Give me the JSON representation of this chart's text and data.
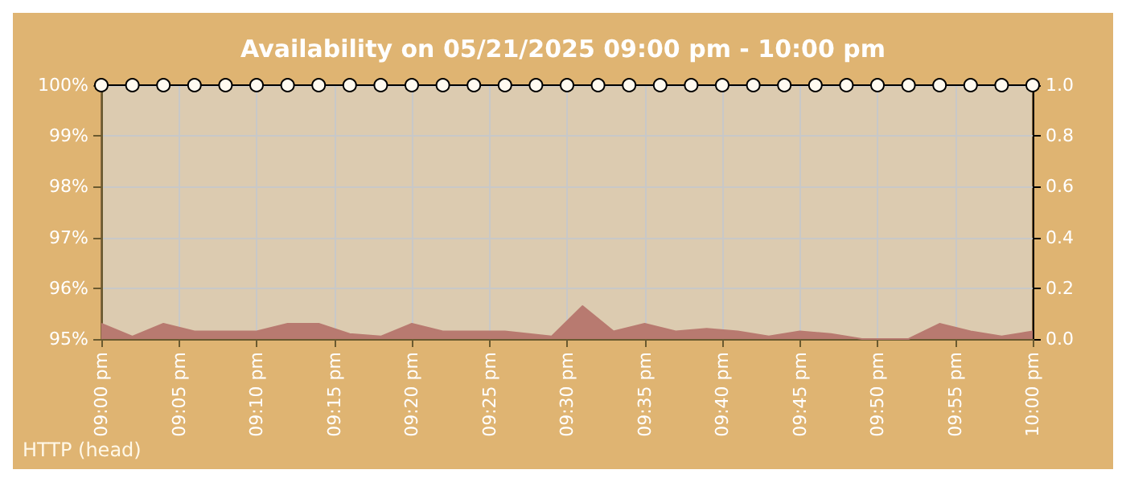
{
  "chart_data": {
    "type": "line",
    "title": "Availability on 05/21/2025 09:00 pm - 10:00 pm",
    "annotations": [
      "HTTP (head)"
    ],
    "series": [
      {
        "type": "area",
        "axis": "y2",
        "color": "#b87a70",
        "x": [
          "2025-05-21T21:00",
          "2025-05-21T21:02",
          "2025-05-21T21:04",
          "2025-05-21T21:06",
          "2025-05-21T21:10",
          "2025-05-21T21:12",
          "2025-05-21T21:14",
          "2025-05-21T21:16",
          "2025-05-21T21:18",
          "2025-05-21T21:20",
          "2025-05-21T21:22",
          "2025-05-21T21:26",
          "2025-05-21T21:29",
          "2025-05-21T21:31",
          "2025-05-21T21:33",
          "2025-05-21T21:35",
          "2025-05-21T21:37",
          "2025-05-21T21:39",
          "2025-05-21T21:41",
          "2025-05-21T21:43",
          "2025-05-21T21:45",
          "2025-05-21T21:47",
          "2025-05-21T21:49",
          "2025-05-21T21:52",
          "2025-05-21T21:54",
          "2025-05-21T21:56",
          "2025-05-21T21:58",
          "2025-05-21T22:00"
        ],
        "values": [
          0.06,
          0.01,
          0.06,
          0.03,
          0.03,
          0.06,
          0.06,
          0.02,
          0.01,
          0.06,
          0.03,
          0.03,
          0.01,
          0.13,
          0.03,
          0.06,
          0.03,
          0.04,
          0.03,
          0.01,
          0.03,
          0.02,
          0,
          0,
          0.06,
          0.03,
          0.01,
          0.03
        ]
      },
      {
        "color": "#000000",
        "marker": "circle",
        "x": [
          "2025-05-21T21:00",
          "2025-05-21T21:02",
          "2025-05-21T21:04",
          "2025-05-21T21:06",
          "2025-05-21T21:08",
          "2025-05-21T21:10",
          "2025-05-21T21:12",
          "2025-05-21T21:14",
          "2025-05-21T21:16",
          "2025-05-21T21:18",
          "2025-05-21T21:20",
          "2025-05-21T21:22",
          "2025-05-21T21:24",
          "2025-05-21T21:26",
          "2025-05-21T21:28",
          "2025-05-21T21:30",
          "2025-05-21T21:32",
          "2025-05-21T21:34",
          "2025-05-21T21:36",
          "2025-05-21T21:38",
          "2025-05-21T21:40",
          "2025-05-21T21:42",
          "2025-05-21T21:44",
          "2025-05-21T21:46",
          "2025-05-21T21:48",
          "2025-05-21T21:50",
          "2025-05-21T21:52",
          "2025-05-21T21:54",
          "2025-05-21T21:56",
          "2025-05-21T21:58",
          "2025-05-21T22:00"
        ],
        "values": [
          100,
          100,
          100,
          100,
          100,
          100,
          100,
          100,
          100,
          100,
          100,
          100,
          100,
          100,
          100,
          100,
          100,
          100,
          100,
          100,
          100,
          100,
          100,
          100,
          100,
          100,
          100,
          100,
          100,
          100,
          100
        ]
      }
    ],
    "xlim": [
      "2025-05-21T21:00",
      "2025-05-21T22:00"
    ],
    "xticks": [
      {
        "value": "2025-05-21T21:00",
        "label": "09:00 pm"
      },
      {
        "value": "2025-05-21T21:05",
        "label": "09:05 pm"
      },
      {
        "value": "2025-05-21T21:10",
        "label": "09:10 pm"
      },
      {
        "value": "2025-05-21T21:15",
        "label": "09:15 pm"
      },
      {
        "value": "2025-05-21T21:20",
        "label": "09:20 pm"
      },
      {
        "value": "2025-05-21T21:25",
        "label": "09:25 pm"
      },
      {
        "value": "2025-05-21T21:30",
        "label": "09:30 pm"
      },
      {
        "value": "2025-05-21T21:35",
        "label": "09:35 pm"
      },
      {
        "value": "2025-05-21T21:40",
        "label": "09:40 pm"
      },
      {
        "value": "2025-05-21T21:45",
        "label": "09:45 pm"
      },
      {
        "value": "2025-05-21T21:50",
        "label": "09:50 pm"
      },
      {
        "value": "2025-05-21T21:55",
        "label": "09:55 pm"
      },
      {
        "value": "2025-05-21T22:00",
        "label": "10:00 pm"
      }
    ],
    "ylim": [
      95,
      100
    ],
    "yticks": [
      {
        "value": 95,
        "label": "95%"
      },
      {
        "value": 96,
        "label": "96%"
      },
      {
        "value": 97,
        "label": "97%"
      },
      {
        "value": 98,
        "label": "98%"
      },
      {
        "value": 99,
        "label": "99%"
      },
      {
        "value": 100,
        "label": "100%"
      }
    ],
    "y2lim": [
      0,
      1
    ],
    "y2ticks": [
      {
        "value": 0,
        "label": "0.0"
      },
      {
        "value": 0.2,
        "label": "0.2"
      },
      {
        "value": 0.4,
        "label": "0.4"
      },
      {
        "value": 0.6,
        "label": "0.6"
      },
      {
        "value": 0.8,
        "label": "0.8"
      },
      {
        "value": 1,
        "label": "1.0"
      }
    ],
    "grid": true,
    "line_style": "solid"
  }
}
